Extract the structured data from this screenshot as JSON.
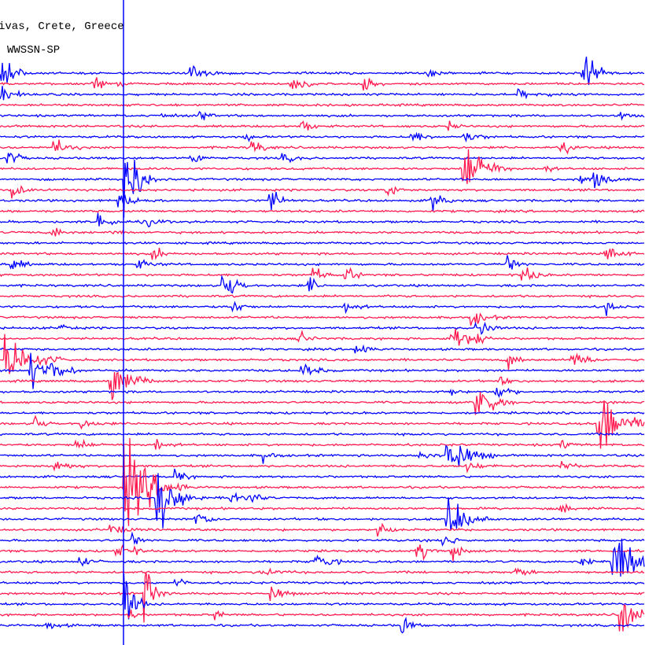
{
  "header": {
    "station": "ivas, Crete, Greece",
    "instrument": "WWSSN-SP"
  }
}
